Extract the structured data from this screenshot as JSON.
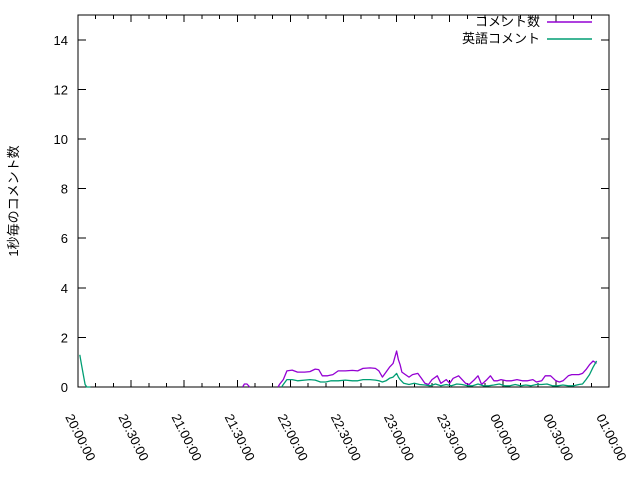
{
  "page": {
    "background": "#ffffff",
    "foreground": "#000000"
  },
  "chart_data": {
    "type": "line",
    "title": "",
    "xlabel": "",
    "ylabel": "1秒毎のコメント数",
    "grid": false,
    "legend_position": "top-right-inside",
    "x_axis": {
      "unit": "time-of-day",
      "start_label": "20:00:00",
      "end_label": "01:00:00",
      "range_minutes": [
        0,
        300
      ],
      "major_tick_every_minutes": 30,
      "minor_tick_every_minutes": 10,
      "tick_labels": [
        "20:00:00",
        "20:30:00",
        "21:00:00",
        "21:30:00",
        "22:00:00",
        "22:30:00",
        "23:00:00",
        "23:30:00",
        "00:00:00",
        "00:30:00",
        "01:00:00"
      ]
    },
    "y_axis": {
      "range": [
        0,
        15
      ],
      "tick_labels": [
        "0",
        "2",
        "4",
        "6",
        "8",
        "10",
        "12",
        "14"
      ],
      "tick_values": [
        0,
        2,
        4,
        6,
        8,
        10,
        12,
        14
      ]
    },
    "series": [
      {
        "name": "コメント数",
        "color": "#9400d3",
        "points_minutes_value": [
          [
            93,
            0
          ],
          [
            94,
            0.12
          ],
          [
            95.5,
            0.12
          ],
          [
            97,
            0
          ],
          null,
          [
            113,
            0
          ],
          [
            114,
            0.12
          ],
          [
            116,
            0.3
          ],
          [
            118,
            0.65
          ],
          [
            121,
            0.68
          ],
          [
            124,
            0.6
          ],
          [
            128,
            0.6
          ],
          [
            131,
            0.62
          ],
          [
            134,
            0.72
          ],
          [
            136,
            0.7
          ],
          [
            138,
            0.45
          ],
          [
            141,
            0.45
          ],
          [
            144,
            0.5
          ],
          [
            147,
            0.65
          ],
          [
            151,
            0.65
          ],
          [
            155,
            0.67
          ],
          [
            158,
            0.65
          ],
          [
            161,
            0.75
          ],
          [
            165,
            0.77
          ],
          [
            168,
            0.75
          ],
          [
            170,
            0.65
          ],
          [
            172,
            0.4
          ],
          [
            174,
            0.6
          ],
          [
            176,
            0.8
          ],
          [
            178,
            0.95
          ],
          [
            180,
            1.45
          ],
          [
            181,
            1.1
          ],
          [
            182,
            0.9
          ],
          [
            183,
            0.6
          ],
          [
            185,
            0.5
          ],
          [
            187,
            0.4
          ],
          [
            189,
            0.5
          ],
          [
            192,
            0.55
          ],
          [
            194,
            0.35
          ],
          [
            196,
            0.15
          ],
          [
            198,
            0.1
          ],
          [
            200,
            0.3
          ],
          [
            203,
            0.45
          ],
          [
            205,
            0.15
          ],
          [
            208,
            0.3
          ],
          [
            210,
            0.15
          ],
          [
            212,
            0.35
          ],
          [
            215,
            0.45
          ],
          [
            217,
            0.3
          ],
          [
            219,
            0.15
          ],
          [
            221,
            0.1
          ],
          [
            224,
            0.3
          ],
          [
            226,
            0.45
          ],
          [
            228,
            0.1
          ],
          [
            231,
            0.3
          ],
          [
            233,
            0.45
          ],
          [
            235,
            0.25
          ],
          [
            237,
            0.25
          ],
          [
            239,
            0.3
          ],
          [
            242,
            0.25
          ],
          [
            245,
            0.25
          ],
          [
            248,
            0.3
          ],
          [
            251,
            0.25
          ],
          [
            254,
            0.25
          ],
          [
            257,
            0.3
          ],
          [
            259,
            0.2
          ],
          [
            262,
            0.25
          ],
          [
            264,
            0.45
          ],
          [
            267,
            0.45
          ],
          [
            270,
            0.25
          ],
          [
            272,
            0.2
          ],
          [
            274,
            0.25
          ],
          [
            277,
            0.45
          ],
          [
            279,
            0.5
          ],
          [
            281,
            0.5
          ],
          [
            283,
            0.5
          ],
          [
            285,
            0.55
          ],
          [
            287,
            0.7
          ],
          [
            289,
            0.9
          ],
          [
            291,
            1.05
          ],
          [
            293,
            0.95
          ]
        ]
      },
      {
        "name": "英語コメント",
        "color": "#009e73",
        "points_minutes_value": [
          [
            1,
            1.3
          ],
          [
            2,
            0.9
          ],
          [
            3,
            0.5
          ],
          [
            4,
            0.1
          ],
          [
            5,
            0
          ],
          [
            7,
            0
          ],
          null,
          [
            115,
            0
          ],
          [
            116,
            0.1
          ],
          [
            118,
            0.3
          ],
          [
            121,
            0.3
          ],
          [
            124,
            0.25
          ],
          [
            128,
            0.28
          ],
          [
            131,
            0.3
          ],
          [
            134,
            0.28
          ],
          [
            137,
            0.2
          ],
          [
            140,
            0.2
          ],
          [
            143,
            0.25
          ],
          [
            147,
            0.25
          ],
          [
            151,
            0.28
          ],
          [
            155,
            0.25
          ],
          [
            158,
            0.25
          ],
          [
            161,
            0.3
          ],
          [
            165,
            0.3
          ],
          [
            168,
            0.28
          ],
          [
            170,
            0.25
          ],
          [
            172,
            0.2
          ],
          [
            174,
            0.25
          ],
          [
            176,
            0.35
          ],
          [
            178,
            0.4
          ],
          [
            180,
            0.55
          ],
          [
            181,
            0.4
          ],
          [
            182,
            0.3
          ],
          [
            184,
            0.15
          ],
          [
            187,
            0.1
          ],
          [
            190,
            0.15
          ],
          [
            193,
            0.1
          ],
          [
            196,
            0.08
          ],
          [
            199,
            0.05
          ],
          [
            202,
            0.12
          ],
          [
            205,
            0.05
          ],
          [
            208,
            0.1
          ],
          [
            211,
            0.05
          ],
          [
            214,
            0.12
          ],
          [
            217,
            0.1
          ],
          [
            220,
            0.05
          ],
          [
            223,
            0.05
          ],
          [
            226,
            0.12
          ],
          [
            229,
            0.05
          ],
          [
            232,
            0.05
          ],
          [
            235,
            0.08
          ],
          [
            238,
            0.12
          ],
          [
            241,
            0.05
          ],
          [
            244,
            0.05
          ],
          [
            247,
            0.1
          ],
          [
            250,
            0.05
          ],
          [
            253,
            0.08
          ],
          [
            256,
            0.05
          ],
          [
            259,
            0.1
          ],
          [
            262,
            0.1
          ],
          [
            265,
            0.12
          ],
          [
            268,
            0.05
          ],
          [
            271,
            0.05
          ],
          [
            274,
            0.08
          ],
          [
            277,
            0.05
          ],
          [
            280,
            0.05
          ],
          [
            283,
            0.1
          ],
          [
            285,
            0.12
          ],
          [
            287,
            0.3
          ],
          [
            289,
            0.5
          ],
          [
            291,
            0.8
          ],
          [
            293,
            1.05
          ]
        ]
      }
    ]
  }
}
